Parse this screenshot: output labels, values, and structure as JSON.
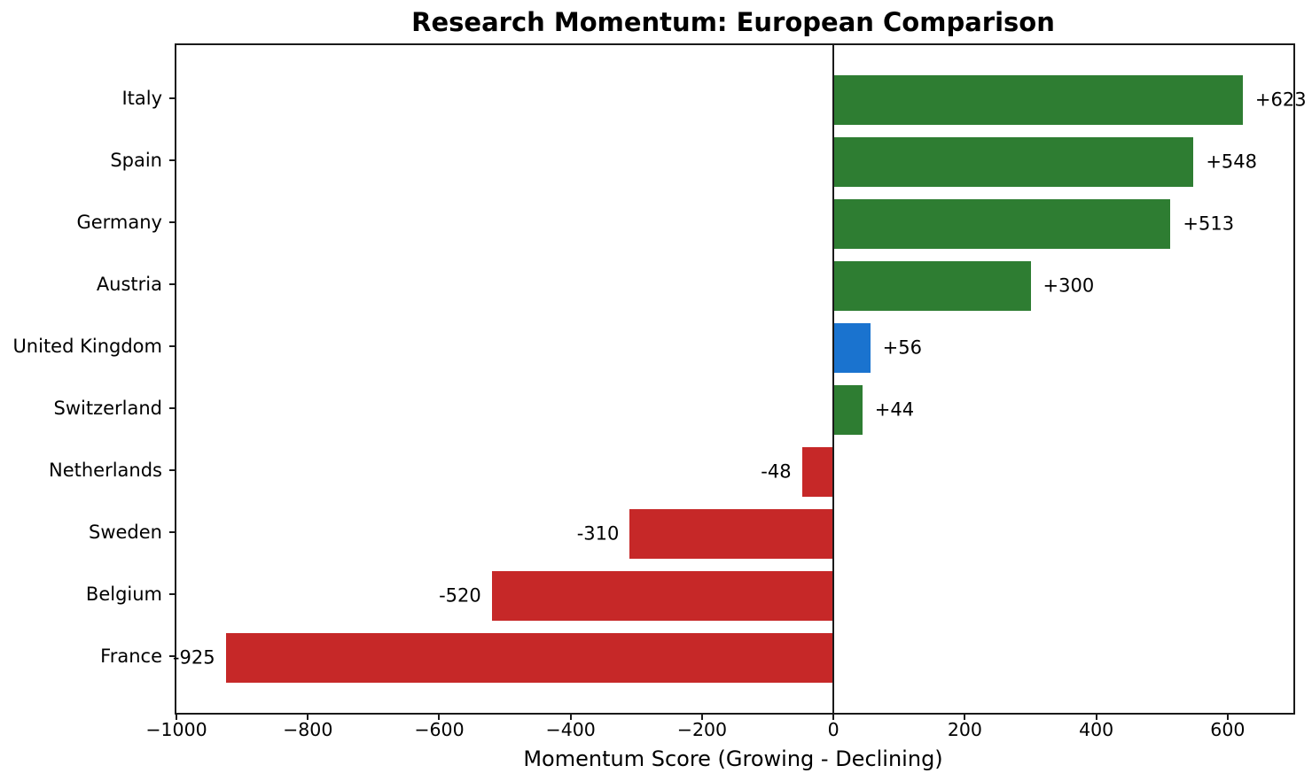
{
  "chart_data": {
    "type": "bar",
    "orientation": "horizontal",
    "title": "Research Momentum: European Comparison",
    "xlabel": "Momentum Score (Growing - Declining)",
    "ylabel": "",
    "categories": [
      "Italy",
      "Spain",
      "Germany",
      "Austria",
      "United Kingdom",
      "Switzerland",
      "Netherlands",
      "Sweden",
      "Belgium",
      "France"
    ],
    "values": [
      623,
      548,
      513,
      300,
      56,
      44,
      -48,
      -310,
      -520,
      -925
    ],
    "value_labels": [
      "+623",
      "+548",
      "+513",
      "+300",
      "+56",
      "+44",
      "-48",
      "-310",
      "-520",
      "-925"
    ],
    "bar_colors": [
      "#2e7d32",
      "#2e7d32",
      "#2e7d32",
      "#2e7d32",
      "#1a73cf",
      "#2e7d32",
      "#c62828",
      "#c62828",
      "#c62828",
      "#c62828"
    ],
    "xlim": [
      -1000,
      700
    ],
    "xticks": [
      -1000,
      -800,
      -600,
      -400,
      -200,
      0,
      200,
      400,
      600
    ],
    "xtick_labels": [
      "−1000",
      "−800",
      "−600",
      "−400",
      "−200",
      "0",
      "200",
      "400",
      "600"
    ],
    "zero_line": true,
    "grid": false,
    "legend": false,
    "colors": {
      "positive_bar": "#2e7d32",
      "negative_bar": "#c62828",
      "highlight_bar": "#1a73cf",
      "axis": "#1a1a1a",
      "text": "#000000",
      "background": "#ffffff"
    }
  }
}
